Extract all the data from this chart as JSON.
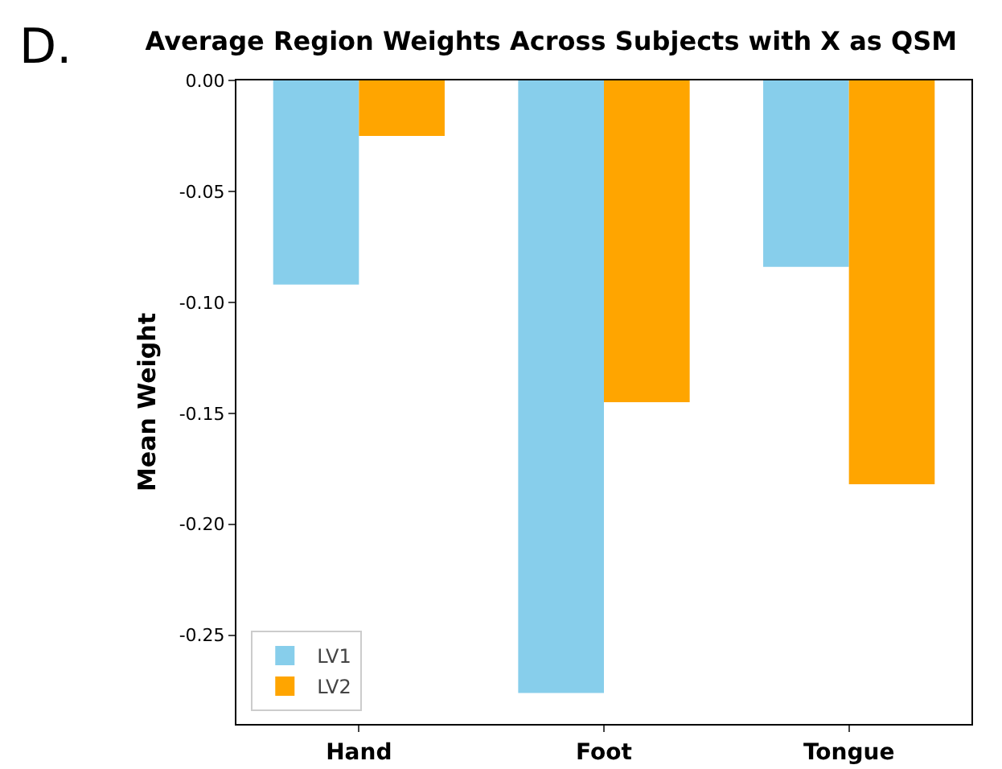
{
  "chart_data": {
    "type": "bar",
    "title": "Average Region Weights Across Subjects with X as QSM",
    "ylabel": "Mean Weight",
    "annotations": [
      "D."
    ],
    "categories": [
      "Hand",
      "Foot",
      "Tongue"
    ],
    "series": [
      {
        "name": "LV1",
        "color": "#87ceeb",
        "values": [
          -0.092,
          -0.276,
          -0.084
        ]
      },
      {
        "name": "LV2",
        "color": "#ffa500",
        "values": [
          -0.025,
          -0.145,
          -0.182
        ]
      }
    ],
    "ylim": [
      -0.29,
      0
    ],
    "yticks": [
      {
        "value": -0.25,
        "label": "-0.25"
      },
      {
        "value": -0.2,
        "label": "-0.20"
      },
      {
        "value": -0.15,
        "label": "-0.15"
      },
      {
        "value": -0.1,
        "label": "-0.10"
      },
      {
        "value": -0.05,
        "label": "-0.05"
      },
      {
        "value": 0,
        "label": "0.00"
      }
    ],
    "grid": false,
    "legend": "bottom left"
  }
}
